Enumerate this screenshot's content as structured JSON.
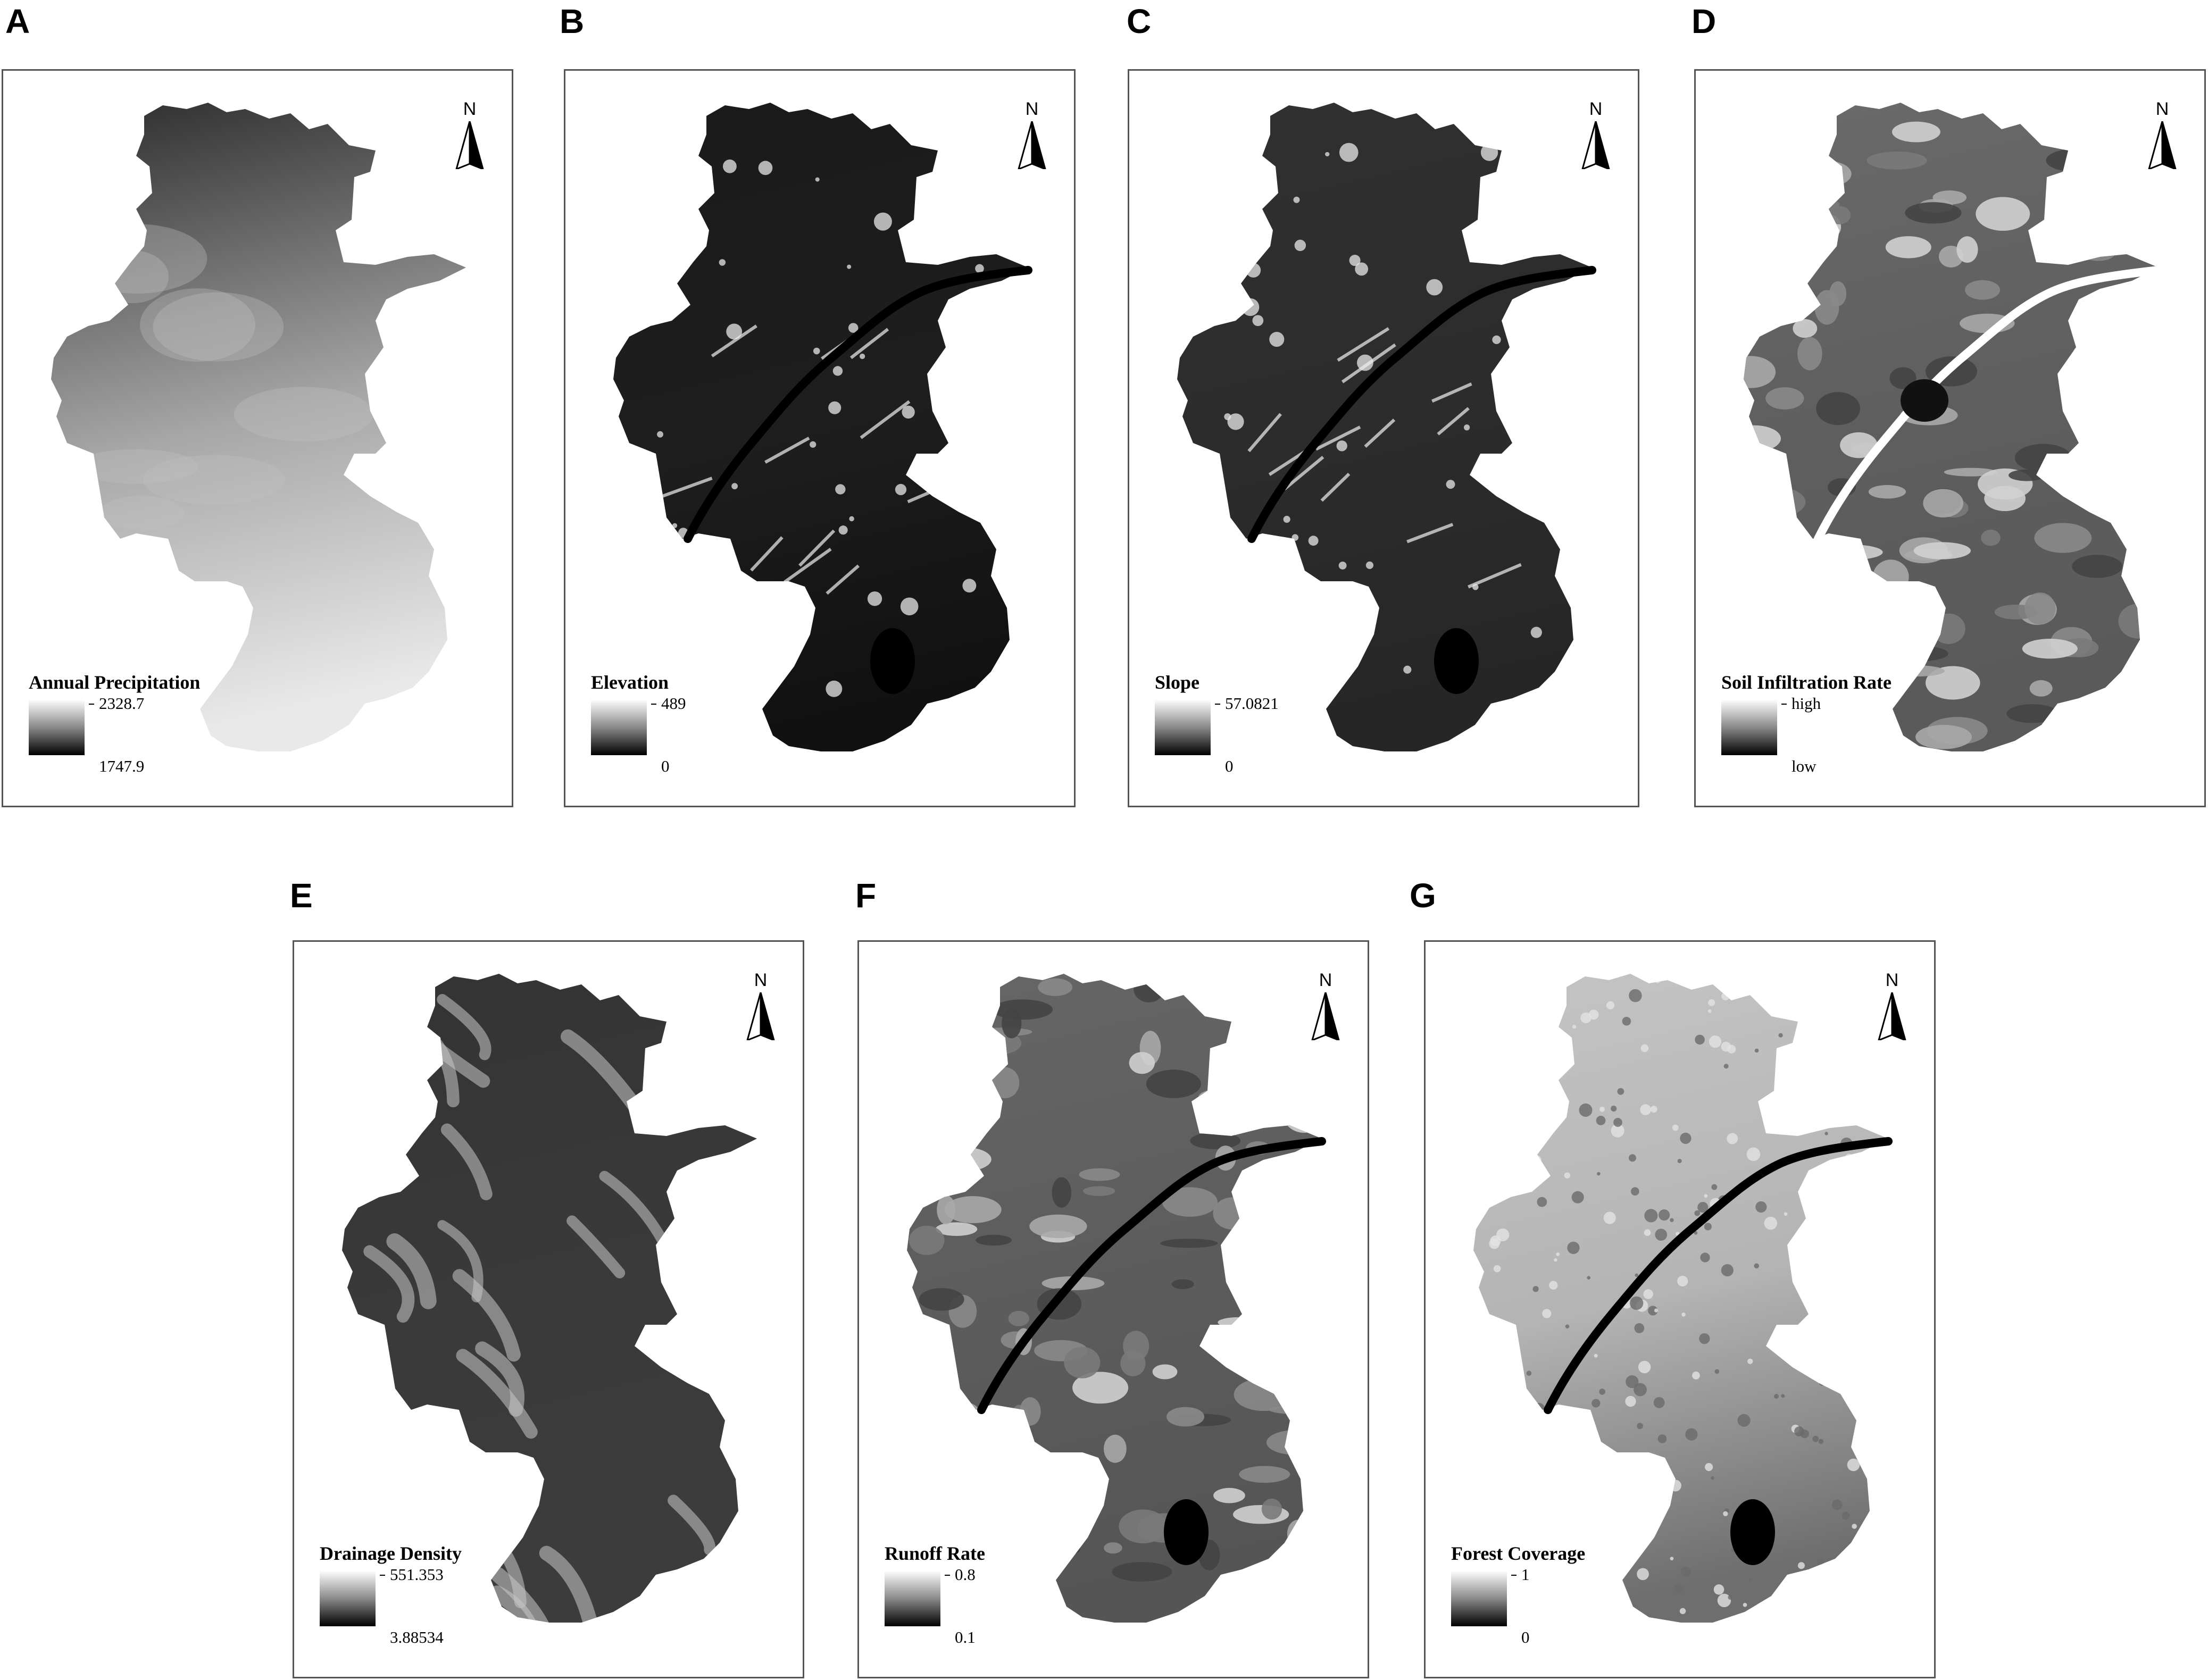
{
  "panels": [
    {
      "letter": "A",
      "north": "N",
      "legend_title": "Annual Precipitation",
      "legend_high": "2328.7",
      "legend_low": "1747.9",
      "fill": "#a7a7a7",
      "fill_top": "#2b2b2b",
      "fill_bottom": "#e9e9e9",
      "texture": "smooth"
    },
    {
      "letter": "B",
      "north": "N",
      "legend_title": "Elevation",
      "legend_high": "489",
      "legend_low": "0",
      "fill": "#1e1e1e",
      "fill_top": "#1a1a1a",
      "fill_bottom": "#111111",
      "texture": "relief"
    },
    {
      "letter": "C",
      "north": "N",
      "legend_title": "Slope",
      "legend_high": "57.0821",
      "legend_low": "0",
      "fill": "#2c2c2c",
      "fill_top": "#303030",
      "fill_bottom": "#262626",
      "texture": "relief"
    },
    {
      "letter": "D",
      "north": "N",
      "legend_title": "Soil Infiltration Rate",
      "legend_high": "high",
      "legend_low": "low",
      "fill": "#5e5e5e",
      "fill_top": "#6a6a6a",
      "fill_bottom": "#5a5a5a",
      "texture": "patches"
    },
    {
      "letter": "E",
      "north": "N",
      "legend_title": "Drainage Density",
      "legend_high": "551.353",
      "legend_low": "3.88534",
      "fill": "#3a3a3a",
      "fill_top": "#333333",
      "fill_bottom": "#3c3c3c",
      "texture": "streaks"
    },
    {
      "letter": "F",
      "north": "N",
      "legend_title": "Runoff Rate",
      "legend_high": "0.8",
      "legend_low": "0.1",
      "fill": "#5c5c5c",
      "fill_top": "#666666",
      "fill_bottom": "#555555",
      "texture": "patches"
    },
    {
      "letter": "G",
      "north": "N",
      "legend_title": "Forest Coverage",
      "legend_high": "1",
      "legend_low": "0",
      "fill": "#b4b4b4",
      "fill_top": "#c4c4c4",
      "fill_bottom": "#6e6e6e",
      "texture": "speckle"
    }
  ],
  "colors": {
    "border": "#555555",
    "water": "#000000",
    "background": "#ffffff"
  },
  "icons": {
    "north_arrow": "north-arrow-icon"
  }
}
